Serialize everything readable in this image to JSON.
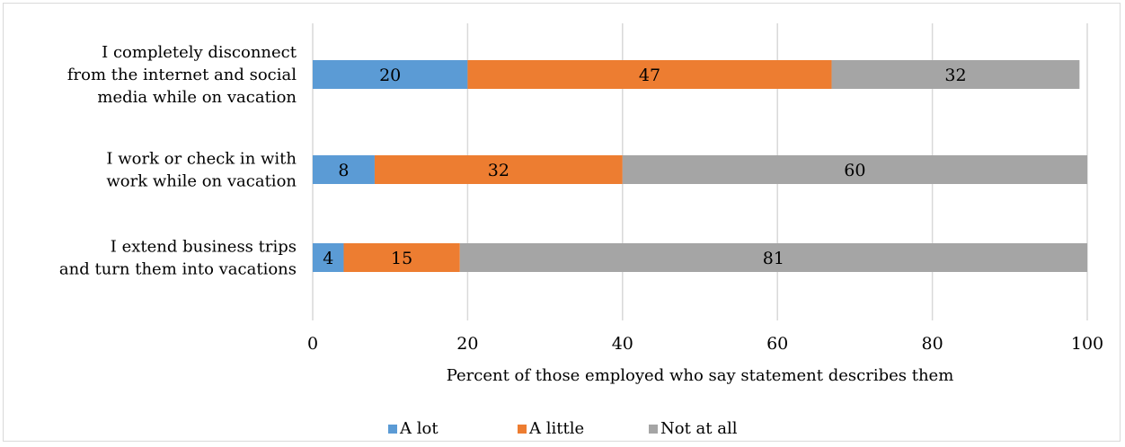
{
  "chart_data": {
    "type": "bar",
    "orientation": "horizontal",
    "stacked": true,
    "categories": [
      [
        "I completely disconnect",
        "from the internet and social",
        "media while on vacation"
      ],
      [
        "I work or check in with",
        "work while on vacation"
      ],
      [
        "I extend business trips",
        "and turn them into vacations"
      ]
    ],
    "series": [
      {
        "name": "A lot",
        "color": "#5b9bd5",
        "values": [
          20,
          8,
          4
        ]
      },
      {
        "name": "A little",
        "color": "#ed7d31",
        "values": [
          47,
          32,
          15
        ]
      },
      {
        "name": "Not at all",
        "color": "#a5a5a5",
        "values": [
          32,
          60,
          81
        ]
      }
    ],
    "xlim": [
      0,
      100
    ],
    "xticks": [
      "0",
      "20",
      "40",
      "60",
      "80",
      "100"
    ],
    "xlabel": "Percent of those employed who say statement describes them",
    "grid": true,
    "legend_position": "bottom"
  }
}
